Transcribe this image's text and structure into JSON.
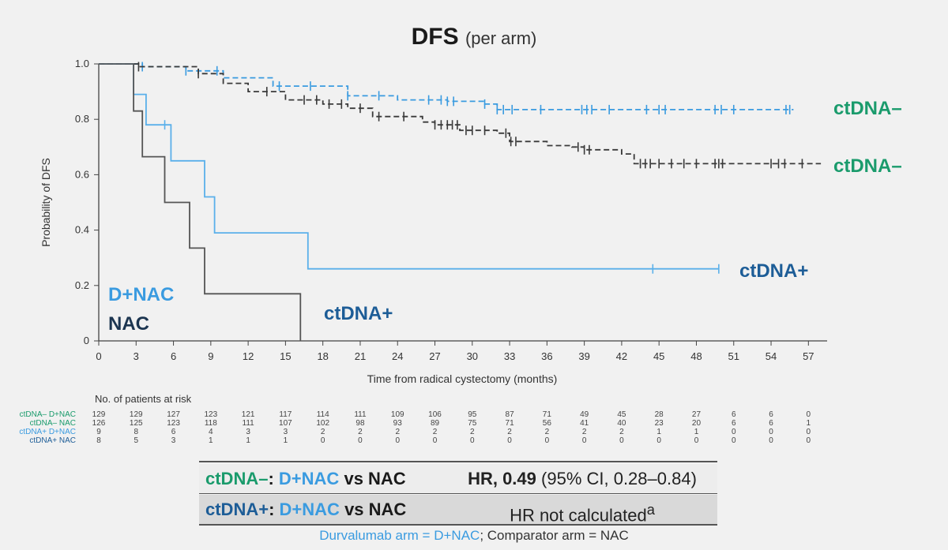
{
  "title": {
    "main": "DFS",
    "sub": "(per arm)"
  },
  "chart_data": {
    "type": "line",
    "xlabel": "Time from radical cystectomy (months)",
    "ylabel": "Probability of DFS",
    "xlim": [
      0,
      58
    ],
    "ylim": [
      0,
      1.0
    ],
    "xticks": [
      0,
      3,
      6,
      9,
      12,
      15,
      18,
      21,
      24,
      27,
      30,
      33,
      36,
      39,
      42,
      45,
      48,
      51,
      54,
      57
    ],
    "yticks": [
      0,
      0.2,
      0.4,
      0.6,
      0.8,
      1.0
    ],
    "ytick_labels": [
      "0",
      "0.2",
      "0.4",
      "0.6",
      "0.8",
      "1.0"
    ],
    "series": [
      {
        "name": "ctDNA– D+NAC",
        "color": "#3a9be0",
        "dash": true,
        "points": [
          [
            0,
            1.0
          ],
          [
            2.8,
            1.0
          ],
          [
            3.5,
            0.99
          ],
          [
            7,
            0.975
          ],
          [
            10,
            0.95
          ],
          [
            14,
            0.92
          ],
          [
            20,
            0.885
          ],
          [
            24,
            0.87
          ],
          [
            28,
            0.865
          ],
          [
            31,
            0.855
          ],
          [
            32,
            0.835
          ],
          [
            40,
            0.835
          ],
          [
            55.8,
            0.835
          ]
        ],
        "censor": [
          3.5,
          7,
          9.5,
          14.5,
          17,
          20,
          22.5,
          26.5,
          27.5,
          28,
          28.5,
          31,
          32,
          32.5,
          33.2,
          35.5,
          38.8,
          39.2,
          39.6,
          41,
          44,
          45,
          45.5,
          49.5,
          50,
          51,
          55.2,
          55.5
        ]
      },
      {
        "name": "ctDNA– NAC",
        "color": "#3a3a3a",
        "dash": true,
        "points": [
          [
            0,
            1.0
          ],
          [
            2.8,
            1.0
          ],
          [
            3.2,
            0.99
          ],
          [
            8,
            0.965
          ],
          [
            10,
            0.93
          ],
          [
            12,
            0.9
          ],
          [
            15,
            0.87
          ],
          [
            18,
            0.855
          ],
          [
            20,
            0.84
          ],
          [
            22,
            0.81
          ],
          [
            26,
            0.79
          ],
          [
            27,
            0.78
          ],
          [
            29,
            0.76
          ],
          [
            32,
            0.75
          ],
          [
            33,
            0.72
          ],
          [
            36,
            0.705
          ],
          [
            38,
            0.7
          ],
          [
            39,
            0.69
          ],
          [
            42,
            0.675
          ],
          [
            43,
            0.64
          ],
          [
            58,
            0.64
          ]
        ],
        "censor": [
          3.2,
          8,
          13.5,
          16.5,
          17.5,
          18.5,
          19.5,
          21,
          22.5,
          24.5,
          27,
          27.5,
          28,
          28.4,
          28.8,
          29.5,
          30,
          31,
          32.7,
          33.1,
          33.5,
          38.5,
          39,
          39.4,
          43.5,
          43.9,
          44.3,
          45,
          46,
          47,
          48,
          49.5,
          49.8,
          50.1,
          54,
          54.6,
          55.1,
          56.5
        ]
      },
      {
        "name": "ctDNA+ D+NAC",
        "color": "#5ab0ea",
        "dash": false,
        "points": [
          [
            0,
            1.0
          ],
          [
            2.8,
            1.0
          ],
          [
            2.8,
            0.89
          ],
          [
            3.8,
            0.89
          ],
          [
            3.8,
            0.78
          ],
          [
            5.8,
            0.78
          ],
          [
            5.8,
            0.65
          ],
          [
            8.5,
            0.65
          ],
          [
            8.5,
            0.52
          ],
          [
            9.3,
            0.52
          ],
          [
            9.3,
            0.39
          ],
          [
            16.8,
            0.39
          ],
          [
            16.8,
            0.26
          ],
          [
            49.8,
            0.26
          ]
        ],
        "censor": [
          5.3,
          44.5,
          49.8
        ]
      },
      {
        "name": "ctDNA+ NAC",
        "color": "#555555",
        "dash": false,
        "points": [
          [
            0,
            1.0
          ],
          [
            2.8,
            1.0
          ],
          [
            2.8,
            0.83
          ],
          [
            3.5,
            0.83
          ],
          [
            3.5,
            0.665
          ],
          [
            5.3,
            0.665
          ],
          [
            5.3,
            0.5
          ],
          [
            7.3,
            0.5
          ],
          [
            7.3,
            0.335
          ],
          [
            8.5,
            0.335
          ],
          [
            8.5,
            0.17
          ],
          [
            16.2,
            0.17
          ],
          [
            16.2,
            0.0
          ]
        ],
        "censor": []
      }
    ],
    "annotations": [
      {
        "text": "ctDNA–",
        "color": "#1a9b6c"
      },
      {
        "text": "ctDNA–",
        "color": "#1a9b6c"
      },
      {
        "text": "ctDNA+",
        "color": "#1d5d97"
      },
      {
        "text": "D+NAC",
        "color": "#3a9be0"
      },
      {
        "text": "NAC",
        "color": "#1c3550"
      },
      {
        "text": "ctDNA+",
        "color": "#1d5d97"
      }
    ]
  },
  "risk_table": {
    "title": "No. of patients at risk",
    "rows": [
      {
        "label": "ctDNA– D+NAC",
        "color": "#1a9b6c",
        "values": [
          "129",
          "129",
          "127",
          "123",
          "121",
          "117",
          "114",
          "111",
          "109",
          "106",
          "95",
          "87",
          "71",
          "49",
          "45",
          "28",
          "27",
          "6",
          "6",
          "0"
        ]
      },
      {
        "label": "ctDNA– NAC",
        "color": "#1a9b6c",
        "values": [
          "126",
          "125",
          "123",
          "118",
          "111",
          "107",
          "102",
          "98",
          "93",
          "89",
          "75",
          "71",
          "56",
          "41",
          "40",
          "23",
          "20",
          "6",
          "6",
          "1"
        ]
      },
      {
        "label": "ctDNA+ D+NAC",
        "color": "#3a9be0",
        "values": [
          "9",
          "8",
          "6",
          "4",
          "3",
          "3",
          "2",
          "2",
          "2",
          "2",
          "2",
          "2",
          "2",
          "2",
          "2",
          "1",
          "1",
          "0",
          "0",
          "0"
        ]
      },
      {
        "label": "ctDNA+ NAC",
        "color": "#1d5d97",
        "values": [
          "8",
          "5",
          "3",
          "1",
          "1",
          "1",
          "0",
          "0",
          "0",
          "0",
          "0",
          "0",
          "0",
          "0",
          "0",
          "0",
          "0",
          "0",
          "0",
          "0"
        ]
      }
    ]
  },
  "hr_table": {
    "row1": {
      "ct": "ctDNA–",
      "colon": ":",
      "dnac": "D+NAC",
      "vs": "vs NAC",
      "hr_label": "HR, 0.49",
      "hr_ci": "(95% CI, 0.28–0.84)"
    },
    "row2": {
      "ct": "ctDNA+",
      "colon": ":",
      "dnac": "D+NAC",
      "vs": "vs NAC",
      "hr_text": "HR not calculated",
      "sup": "a"
    }
  },
  "footnote": {
    "part1": "Durvalumab arm = D+NAC",
    "part2": "; Comparator arm = NAC"
  },
  "colors": {
    "ctdna_neg_label": "#1a9b6c",
    "ctdna_pos_label": "#1d5d97",
    "dnac": "#3a9be0"
  }
}
